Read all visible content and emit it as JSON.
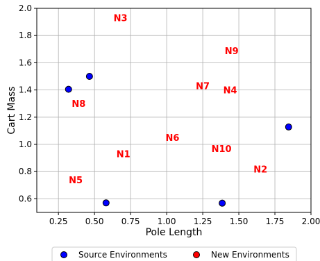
{
  "chart_data": {
    "type": "scatter",
    "xlabel": "Pole Length",
    "ylabel": "Cart Mass",
    "xlim": [
      0.1,
      2.0
    ],
    "ylim": [
      0.5,
      2.0
    ],
    "xticks": [
      0.25,
      0.5,
      0.75,
      1.0,
      1.25,
      1.5,
      1.75,
      2.0
    ],
    "xtick_labels": [
      "0.25",
      "0.50",
      "0.75",
      "1.00",
      "1.25",
      "1.50",
      "1.75",
      "2.00"
    ],
    "yticks": [
      0.6,
      0.8,
      1.0,
      1.2,
      1.4,
      1.6,
      1.8,
      2.0
    ],
    "ytick_labels": [
      "0.6",
      "0.8",
      "1.0",
      "1.2",
      "1.4",
      "1.6",
      "1.8",
      "2.0"
    ],
    "grid": true,
    "legend_placement": "bottom-center",
    "series": [
      {
        "name": "Source Environments",
        "color": "#0000ff",
        "points": [
          {
            "x": 0.32,
            "y": 1.405
          },
          {
            "x": 0.465,
            "y": 1.5
          },
          {
            "x": 0.58,
            "y": 0.57
          },
          {
            "x": 1.385,
            "y": 0.568
          },
          {
            "x": 1.845,
            "y": 1.128
          }
        ]
      },
      {
        "name": "New Environments",
        "color": "#ff0000",
        "points": []
      }
    ],
    "annotations": [
      {
        "text": "N1",
        "x": 0.7,
        "y": 0.93
      },
      {
        "text": "N2",
        "x": 1.65,
        "y": 0.82
      },
      {
        "text": "N3",
        "x": 0.68,
        "y": 1.93
      },
      {
        "text": "N4",
        "x": 1.44,
        "y": 1.4
      },
      {
        "text": "N5",
        "x": 0.37,
        "y": 0.74
      },
      {
        "text": "N6",
        "x": 1.04,
        "y": 1.05
      },
      {
        "text": "N7",
        "x": 1.25,
        "y": 1.43
      },
      {
        "text": "N8",
        "x": 0.39,
        "y": 1.3
      },
      {
        "text": "N9",
        "x": 1.45,
        "y": 1.69
      },
      {
        "text": "N10",
        "x": 1.38,
        "y": 0.97
      }
    ]
  }
}
